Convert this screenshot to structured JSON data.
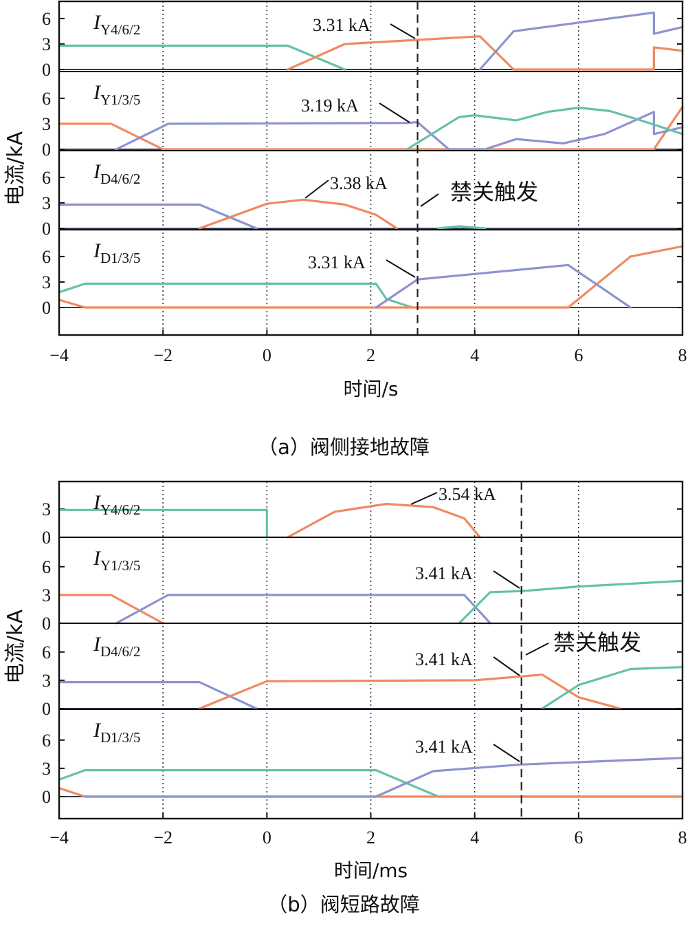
{
  "colors": {
    "orange": "#ef8a62",
    "blue": "#8e93cf",
    "green": "#66c2a5",
    "axis": "#111111",
    "grid": "#333333"
  },
  "figure_a": {
    "caption": "（a）阀侧接地故障",
    "xlabel": "时间/s",
    "ylabel": "电流/kA",
    "trigger_label": "禁关触发",
    "xticks": [
      "−4",
      "−2",
      "0",
      "2",
      "4",
      "6",
      "8"
    ]
  },
  "figure_b": {
    "caption": "（b）阀短路故障",
    "xlabel": "时间/ms",
    "ylabel": "电流/kA",
    "trigger_label": "禁关触发",
    "xticks": [
      "−4",
      "−2",
      "0",
      "2",
      "4",
      "6",
      "8"
    ]
  },
  "chart_data": [
    {
      "type": "line",
      "figure": "a",
      "xlim": [
        -4,
        8
      ],
      "xlabel": "时间/s",
      "ylabel": "电流/kA",
      "grid_x": [
        -2,
        0,
        2,
        4,
        6
      ],
      "trigger_x": 2.9,
      "trigger_label": "禁关触发",
      "panels": [
        {
          "label_main": "I",
          "label_sub": "Y4/6/2",
          "ylim": [
            0,
            7
          ],
          "yticks": [
            0,
            3,
            6
          ],
          "annotation": {
            "text": "3.31 kA",
            "x": 2.9,
            "y": 3.31
          },
          "series": [
            {
              "color": "green",
              "x": [
                -4,
                0,
                0.4,
                1.5
              ],
              "y": [
                2.8,
                2.8,
                2.8,
                0
              ]
            },
            {
              "color": "orange",
              "x": [
                0.4,
                1.5,
                4.1,
                4.75,
                7.45,
                7.45,
                8
              ],
              "y": [
                0,
                3.0,
                3.9,
                0,
                0,
                2.6,
                2.2
              ]
            },
            {
              "color": "blue",
              "x": [
                4.1,
                4.75,
                7.45,
                7.45,
                8
              ],
              "y": [
                0,
                4.5,
                6.7,
                4.2,
                5.0
              ]
            }
          ]
        },
        {
          "label_main": "I",
          "label_sub": "Y1/3/5",
          "ylim": [
            0,
            7
          ],
          "yticks": [
            0,
            3,
            6
          ],
          "annotation": {
            "text": "3.19 kA",
            "x": 2.9,
            "y": 3.19
          },
          "series": [
            {
              "color": "orange",
              "x": [
                -4,
                -3,
                -2,
                7.45,
                8
              ],
              "y": [
                3.0,
                3.0,
                0,
                0,
                5.0
              ]
            },
            {
              "color": "blue",
              "x": [
                -2.9,
                -1.9,
                2.7,
                2.9,
                3.5,
                4.2,
                4.8,
                5.7,
                6.5,
                7.45,
                7.45,
                8
              ],
              "y": [
                0,
                3.0,
                3.1,
                3.19,
                0,
                0,
                1.2,
                0.7,
                1.8,
                4.4,
                1.8,
                2.6
              ]
            },
            {
              "color": "green",
              "x": [
                2.7,
                3.7,
                4.0,
                4.8,
                5.4,
                6.0,
                6.6,
                7.2,
                8
              ],
              "y": [
                0,
                3.8,
                4.0,
                3.4,
                4.4,
                4.9,
                4.5,
                3.4,
                1.8
              ]
            }
          ]
        },
        {
          "label_main": "I",
          "label_sub": "D4/6/2",
          "ylim": [
            0,
            7
          ],
          "yticks": [
            0,
            3,
            6
          ],
          "annotation": {
            "text": "3.38 kA",
            "x": 0.7,
            "y": 3.38
          },
          "series": [
            {
              "color": "blue",
              "x": [
                -4,
                -1.3,
                -0.2
              ],
              "y": [
                2.8,
                2.8,
                0
              ]
            },
            {
              "color": "orange",
              "x": [
                -1.3,
                0,
                0.7,
                1.5,
                2.1,
                2.5
              ],
              "y": [
                0,
                2.9,
                3.38,
                2.8,
                1.6,
                0
              ]
            },
            {
              "color": "green",
              "x": [
                3.3,
                3.7,
                4.2
              ],
              "y": [
                0,
                0.25,
                0
              ]
            }
          ]
        },
        {
          "label_main": "I",
          "label_sub": "D1/3/5",
          "ylim": [
            0,
            7
          ],
          "yticks": [
            0,
            3,
            6
          ],
          "annotation": {
            "text": "3.31 kA",
            "x": 2.9,
            "y": 3.31
          },
          "series": [
            {
              "color": "green",
              "x": [
                -4,
                -3.5,
                2.1,
                2.3,
                2.8
              ],
              "y": [
                1.8,
                2.8,
                2.8,
                1.0,
                0
              ]
            },
            {
              "color": "orange",
              "x": [
                -4,
                -3.5,
                2.1,
                2.7,
                5.8,
                7.0,
                8
              ],
              "y": [
                0.9,
                0,
                0,
                0,
                0,
                6.0,
                7.2
              ]
            },
            {
              "color": "blue",
              "x": [
                2.1,
                2.9,
                5.8,
                7.0
              ],
              "y": [
                0,
                3.3,
                5.0,
                0
              ]
            }
          ]
        }
      ]
    },
    {
      "type": "line",
      "figure": "b",
      "xlim": [
        -4,
        8
      ],
      "xlabel": "时间/ms",
      "ylabel": "电流/kA",
      "grid_x": [
        -2,
        0,
        2,
        4,
        6
      ],
      "trigger_x": 4.9,
      "trigger_label": "禁关触发",
      "panels": [
        {
          "label_main": "I",
          "label_sub": "Y4/6/2",
          "ylim": [
            0,
            5
          ],
          "yticks": [
            0,
            3
          ],
          "annotation": {
            "text": "3.54 kA",
            "x": 2.8,
            "y": 3.54
          },
          "series": [
            {
              "color": "green",
              "x": [
                -4,
                0,
                0
              ],
              "y": [
                2.9,
                2.9,
                0
              ]
            },
            {
              "color": "orange",
              "x": [
                0.4,
                1.3,
                2.3,
                3.2,
                3.8,
                4.1
              ],
              "y": [
                0,
                2.7,
                3.54,
                3.2,
                2.0,
                0
              ]
            }
          ]
        },
        {
          "label_main": "I",
          "label_sub": "Y1/3/5",
          "ylim": [
            0,
            7
          ],
          "yticks": [
            0,
            3,
            6
          ],
          "annotation": {
            "text": "3.41 kA",
            "x": 4.9,
            "y": 3.41
          },
          "series": [
            {
              "color": "orange",
              "x": [
                -4,
                -3,
                -2
              ],
              "y": [
                3.0,
                3.0,
                0
              ]
            },
            {
              "color": "blue",
              "x": [
                -2.9,
                -1.9,
                3.8,
                4.3
              ],
              "y": [
                0,
                3.0,
                3.0,
                0
              ]
            },
            {
              "color": "green",
              "x": [
                3.7,
                4.3,
                4.9,
                6.0,
                8
              ],
              "y": [
                0,
                3.3,
                3.41,
                3.9,
                4.5
              ]
            }
          ]
        },
        {
          "label_main": "I",
          "label_sub": "D4/6/2",
          "ylim": [
            0,
            7
          ],
          "yticks": [
            0,
            3,
            6
          ],
          "annotation": {
            "text": "3.41 kA",
            "x": 4.9,
            "y": 3.41
          },
          "series": [
            {
              "color": "blue",
              "x": [
                -4,
                -1.3,
                -0.2
              ],
              "y": [
                2.8,
                2.8,
                0
              ]
            },
            {
              "color": "orange",
              "x": [
                -1.3,
                0,
                4,
                4.9,
                5.3,
                6.0,
                6.8
              ],
              "y": [
                0,
                2.9,
                3.0,
                3.41,
                3.6,
                1.2,
                0
              ]
            },
            {
              "color": "green",
              "x": [
                5.3,
                6.0,
                7.0,
                8
              ],
              "y": [
                0,
                2.5,
                4.2,
                4.4
              ]
            }
          ]
        },
        {
          "label_main": "I",
          "label_sub": "D1/3/5",
          "ylim": [
            0,
            7
          ],
          "yticks": [
            0,
            3,
            6
          ],
          "annotation": {
            "text": "3.41 kA",
            "x": 4.9,
            "y": 3.41
          },
          "series": [
            {
              "color": "green",
              "x": [
                -4,
                -3.5,
                2.1,
                3.3,
                8
              ],
              "y": [
                1.8,
                2.8,
                2.8,
                0,
                0
              ]
            },
            {
              "color": "orange",
              "x": [
                -4,
                -3.5,
                8
              ],
              "y": [
                0.9,
                0,
                0
              ]
            },
            {
              "color": "blue",
              "x": [
                -3.5,
                2.1,
                3.2,
                4.9,
                8
              ],
              "y": [
                0,
                0,
                2.7,
                3.41,
                4.1
              ]
            }
          ]
        }
      ]
    }
  ]
}
